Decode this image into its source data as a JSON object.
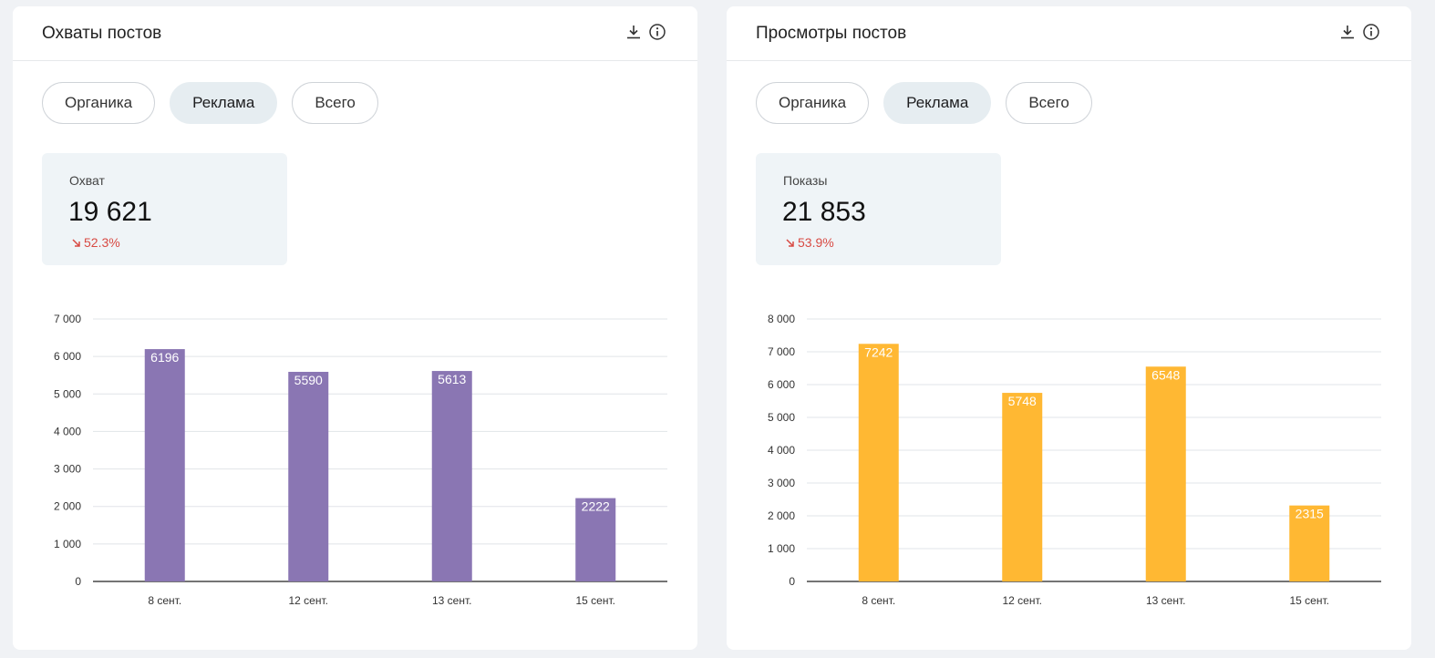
{
  "cards": [
    {
      "title": "Охваты постов",
      "tabs": [
        "Органика",
        "Реклама",
        "Всего"
      ],
      "active_tab": 1,
      "metric": {
        "label": "Охват",
        "value": "19 621",
        "delta": "52.3%",
        "delta_direction": "down"
      },
      "chart_data": {
        "type": "bar",
        "categories": [
          "8 сент.",
          "12 сент.",
          "13 сент.",
          "15 сент."
        ],
        "values": [
          6196,
          5590,
          5613,
          2222
        ],
        "ylim": [
          0,
          7000
        ],
        "yticks": [
          0,
          1000,
          2000,
          3000,
          4000,
          5000,
          6000,
          7000
        ],
        "ytick_labels": [
          "0",
          "1 000",
          "2 000",
          "3 000",
          "4 000",
          "5 000",
          "6 000",
          "7 000"
        ],
        "color": "#8a76b3",
        "title": "",
        "xlabel": "",
        "ylabel": ""
      }
    },
    {
      "title": "Просмотры постов",
      "tabs": [
        "Органика",
        "Реклама",
        "Всего"
      ],
      "active_tab": 1,
      "metric": {
        "label": "Показы",
        "value": "21 853",
        "delta": "53.9%",
        "delta_direction": "down"
      },
      "chart_data": {
        "type": "bar",
        "categories": [
          "8 сент.",
          "12 сент.",
          "13 сент.",
          "15 сент."
        ],
        "values": [
          7242,
          5748,
          6548,
          2315
        ],
        "ylim": [
          0,
          8000
        ],
        "yticks": [
          0,
          1000,
          2000,
          3000,
          4000,
          5000,
          6000,
          7000,
          8000
        ],
        "ytick_labels": [
          "0",
          "1 000",
          "2 000",
          "3 000",
          "4 000",
          "5 000",
          "6 000",
          "7 000",
          "8 000"
        ],
        "color": "#ffb833",
        "title": "",
        "xlabel": "",
        "ylabel": ""
      }
    }
  ],
  "icons": {
    "download": "download-icon",
    "info": "info-icon"
  },
  "colors": {
    "delta_down": "#d84a43",
    "tab_active_bg": "#e6edf1",
    "metric_bg": "#eff4f7"
  }
}
